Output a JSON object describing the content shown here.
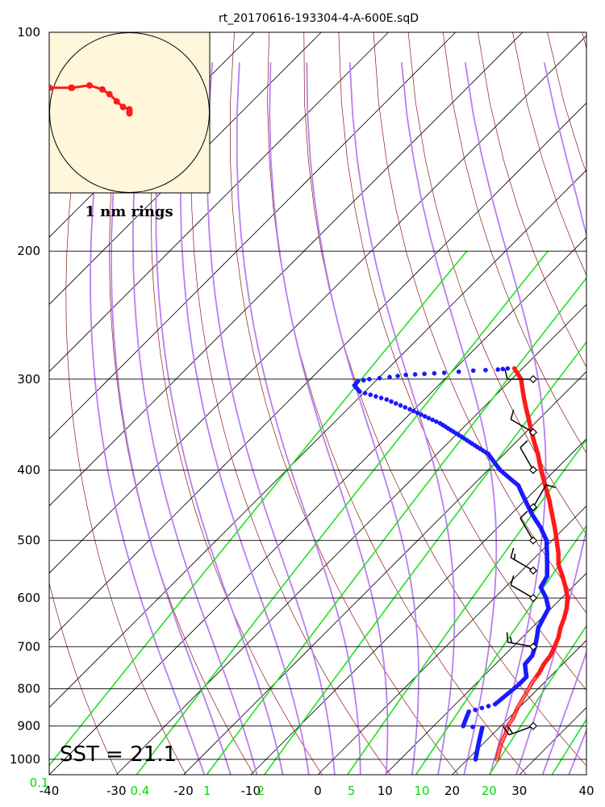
{
  "title": "rt_20170616-193304-4-A-600E.sqD",
  "sst_label": "SST = 21.1",
  "inset_label": "1 nm rings",
  "chart_data": {
    "type": "skew-t",
    "title": "rt_20170616-193304-4-A-600E.sqD",
    "pressure_ticks": [
      "100",
      "200",
      "300",
      "400",
      "500",
      "600",
      "700",
      "800",
      "900",
      "1000"
    ],
    "temperature_ticks": [
      "-40",
      "-30",
      "-20",
      "-10",
      "0",
      "10",
      "20",
      "30",
      "40"
    ],
    "mixing_ratio_ticks": [
      {
        "label": "0.1",
        "t": -41.5
      },
      {
        "label": "0.4",
        "t": -26.5
      },
      {
        "label": "1",
        "t": -16.5
      },
      {
        "label": "2",
        "t": -8.5
      },
      {
        "label": "5",
        "t": 5
      },
      {
        "label": "10",
        "t": 15.5
      },
      {
        "label": "20",
        "t": 25.5
      }
    ],
    "xlim": [
      -40,
      40
    ],
    "ylim": [
      1050,
      100
    ],
    "grid": true,
    "temperature_profile": [
      [
        1000,
        24.4
      ],
      [
        950,
        22.6
      ],
      [
        920,
        21.8
      ],
      [
        900,
        21.0
      ],
      [
        880,
        20.7
      ],
      [
        850,
        19.8
      ],
      [
        820,
        19.1
      ],
      [
        800,
        18.6
      ],
      [
        780,
        18.1
      ],
      [
        760,
        17.8
      ],
      [
        740,
        17.2
      ],
      [
        720,
        16.9
      ],
      [
        700,
        16.2
      ],
      [
        680,
        15.4
      ],
      [
        660,
        14.3
      ],
      [
        640,
        13.4
      ],
      [
        620,
        12.3
      ],
      [
        600,
        10.9
      ],
      [
        580,
        9.0
      ],
      [
        560,
        6.9
      ],
      [
        540,
        4.6
      ],
      [
        520,
        2.8
      ],
      [
        500,
        0.7
      ],
      [
        480,
        -1.5
      ],
      [
        460,
        -3.9
      ],
      [
        440,
        -6.4
      ],
      [
        420,
        -9.2
      ],
      [
        400,
        -12.1
      ],
      [
        380,
        -15.0
      ],
      [
        360,
        -18.3
      ],
      [
        340,
        -21.6
      ],
      [
        320,
        -25.1
      ],
      [
        300,
        -28.6
      ],
      [
        290,
        -31.2
      ]
    ],
    "dewpoint_profile": [
      [
        1000,
        21.2
      ],
      [
        905,
        17.5
      ],
      [
        900,
        14.4
      ],
      [
        860,
        13.1
      ],
      [
        840,
        15.9
      ],
      [
        790,
        16.5
      ],
      [
        770,
        16.5
      ],
      [
        740,
        14.4
      ],
      [
        720,
        14.2
      ],
      [
        700,
        13.3
      ],
      [
        680,
        12.2
      ],
      [
        660,
        11.0
      ],
      [
        640,
        10.3
      ],
      [
        620,
        9.6
      ],
      [
        600,
        7.7
      ],
      [
        580,
        5.3
      ],
      [
        560,
        4.6
      ],
      [
        540,
        2.9
      ],
      [
        520,
        1.1
      ],
      [
        500,
        -0.8
      ],
      [
        480,
        -3.6
      ],
      [
        460,
        -6.9
      ],
      [
        440,
        -10.0
      ],
      [
        420,
        -13.2
      ],
      [
        400,
        -18.2
      ],
      [
        380,
        -22.4
      ],
      [
        360,
        -28.9
      ],
      [
        345,
        -34.1
      ],
      [
        330,
        -40.7
      ],
      [
        320,
        -45.6
      ],
      [
        312,
        -50.8
      ],
      [
        306,
        -52.5
      ],
      [
        302,
        -52.6
      ],
      [
        300,
        -51.2
      ],
      [
        298,
        -48.5
      ],
      [
        296,
        -46.4
      ],
      [
        295,
        -43.8
      ],
      [
        294,
        -41.0
      ],
      [
        292,
        -37.0
      ],
      [
        291,
        -33.5
      ],
      [
        290,
        -32.2
      ]
    ],
    "wind_barbs": [
      {
        "p": 300,
        "dir": 270,
        "speed": 10
      },
      {
        "p": 355,
        "dir": 300,
        "speed": 10
      },
      {
        "p": 400,
        "dir": 330,
        "speed": 10
      },
      {
        "p": 450,
        "dir": 30,
        "speed": 10
      },
      {
        "p": 500,
        "dir": 330,
        "speed": 10
      },
      {
        "p": 550,
        "dir": 300,
        "speed": 15
      },
      {
        "p": 600,
        "dir": 300,
        "speed": 10
      },
      {
        "p": 700,
        "dir": 280,
        "speed": 15
      },
      {
        "p": 900,
        "dir": 250,
        "speed": 20
      }
    ],
    "hodograph": {
      "label": "1 nm rings",
      "track": [
        [
          -1.0,
          0.31
        ],
        [
          -0.73,
          0.31
        ],
        [
          -0.72,
          0.31
        ],
        [
          -0.5,
          0.34
        ],
        [
          -0.34,
          0.29
        ],
        [
          -0.25,
          0.23
        ],
        [
          -0.16,
          0.14
        ],
        [
          -0.08,
          0.07
        ],
        [
          0.0,
          0.04
        ],
        [
          0.0,
          0.01
        ],
        [
          0.0,
          -0.01
        ]
      ]
    }
  }
}
